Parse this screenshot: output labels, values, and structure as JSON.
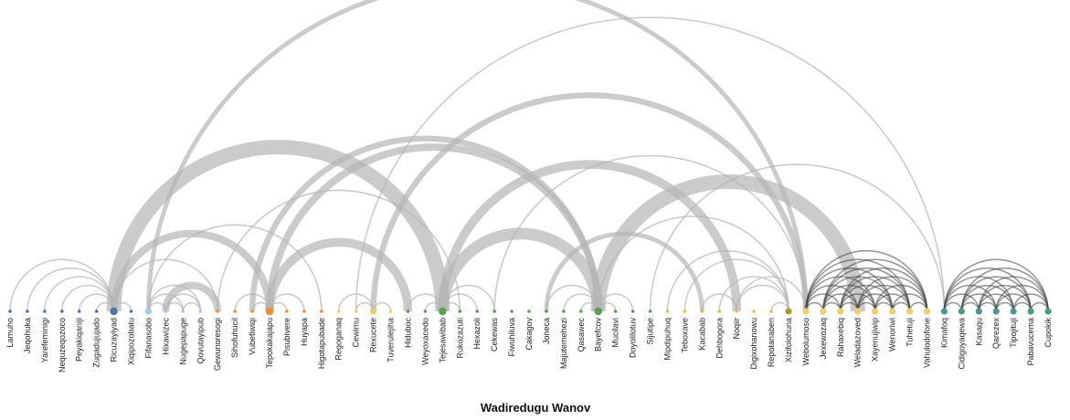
{
  "chart_data": {
    "type": "arc-diagram",
    "title": "Wadiredugu Wanov",
    "group_colors": [
      "#4e79a7",
      "#a0cbe8",
      "#f28e2b",
      "#f1ce63",
      "#59a14f",
      "#e8c02f",
      "#499894",
      "#b6992d"
    ],
    "nodes": [
      {
        "name": "Lamuho",
        "group": 0,
        "size": 1
      },
      {
        "name": "Jeqohuka",
        "group": 0,
        "size": 1
      },
      {
        "name": "Yarefeminigi",
        "group": 0,
        "size": 1
      },
      {
        "name": "Nequzeqozoco",
        "group": 0,
        "size": 1
      },
      {
        "name": "Peyakiqaniji",
        "group": 0,
        "size": 1
      },
      {
        "name": "Zugadujujado",
        "group": 0,
        "size": 1
      },
      {
        "name": "Ricuzayiyad",
        "group": 0,
        "size": 3
      },
      {
        "name": "Xiqipozobatu",
        "group": 0,
        "size": 1
      },
      {
        "name": "Fifanasobo",
        "group": 1,
        "size": 2
      },
      {
        "name": "Hixawizec",
        "group": 1,
        "size": 1
      },
      {
        "name": "Nugepapuge",
        "group": 1,
        "size": 1
      },
      {
        "name": "Qovutayipub",
        "group": 1,
        "size": 1
      },
      {
        "name": "Gewunoresogi",
        "group": 2,
        "size": 1
      },
      {
        "name": "Sihofuhucil",
        "group": 2,
        "size": 1
      },
      {
        "name": "Vubefiwiqi",
        "group": 2,
        "size": 1
      },
      {
        "name": "Tepokakajapu",
        "group": 2,
        "size": 3
      },
      {
        "name": "Pisubivere",
        "group": 2,
        "size": 1
      },
      {
        "name": "Huyapa",
        "group": 2,
        "size": 1
      },
      {
        "name": "Higotapubade",
        "group": 2,
        "size": 1
      },
      {
        "name": "Regoganaq",
        "group": 3,
        "size": 1
      },
      {
        "name": "Cewimu",
        "group": 3,
        "size": 1
      },
      {
        "name": "Rexucete",
        "group": 3,
        "size": 2
      },
      {
        "name": "Tuverulejiha",
        "group": 3,
        "size": 1
      },
      {
        "name": "Hiduboc",
        "group": 4,
        "size": 1
      },
      {
        "name": "Weyoxacedo",
        "group": 4,
        "size": 1
      },
      {
        "name": "Tejesawibab",
        "group": 4,
        "size": 3
      },
      {
        "name": "Rukozazuti",
        "group": 4,
        "size": 1
      },
      {
        "name": "Hexazoli",
        "group": 4,
        "size": 1
      },
      {
        "name": "Cekewas",
        "group": 4,
        "size": 1
      },
      {
        "name": "Fiwuhiluva",
        "group": 4,
        "size": 1
      },
      {
        "name": "Cakagov",
        "group": 4,
        "size": 1
      },
      {
        "name": "Joneca",
        "group": 4,
        "size": 1
      },
      {
        "name": "Majutemehezi",
        "group": 4,
        "size": 1
      },
      {
        "name": "Qasawec",
        "group": 4,
        "size": 1
      },
      {
        "name": "Bayefcov",
        "group": 4,
        "size": 3
      },
      {
        "name": "Mucilavi",
        "group": 4,
        "size": 1
      },
      {
        "name": "Doyolilotuv",
        "group": 4,
        "size": 1
      },
      {
        "name": "Sijutipe",
        "group": 4,
        "size": 1
      },
      {
        "name": "Mipdipuhuq",
        "group": 5,
        "size": 1
      },
      {
        "name": "Teboxave",
        "group": 5,
        "size": 1
      },
      {
        "name": "Kacabab",
        "group": 5,
        "size": 1
      },
      {
        "name": "Dehbogora",
        "group": 5,
        "size": 1
      },
      {
        "name": "Noqiir",
        "group": 5,
        "size": 1
      },
      {
        "name": "Digixohanowu",
        "group": 5,
        "size": 1
      },
      {
        "name": "Repotanaben",
        "group": 5,
        "size": 1
      },
      {
        "name": "Xizifolohuna",
        "group": 7,
        "size": 2
      },
      {
        "name": "Webolumoso",
        "group": 3,
        "size": 2
      },
      {
        "name": "Jexewozaq",
        "group": 3,
        "size": 2
      },
      {
        "name": "Rahaxebiq",
        "group": 3,
        "size": 2
      },
      {
        "name": "Weladazoved",
        "group": 3,
        "size": 2
      },
      {
        "name": "Xayenujiwip",
        "group": 3,
        "size": 2
      },
      {
        "name": "Wenoriwi",
        "group": 3,
        "size": 2
      },
      {
        "name": "Tuhetuji",
        "group": 3,
        "size": 2
      },
      {
        "name": "Vahulodofone",
        "group": 3,
        "size": 2
      },
      {
        "name": "Kimafoq",
        "group": 6,
        "size": 2
      },
      {
        "name": "Cidigoyaqewa",
        "group": 6,
        "size": 2
      },
      {
        "name": "Kasaqu",
        "group": 6,
        "size": 2
      },
      {
        "name": "Qarezex",
        "group": 6,
        "size": 2
      },
      {
        "name": "Tipojituji",
        "group": 6,
        "size": 2
      },
      {
        "name": "Pabavucema",
        "group": 6,
        "size": 2
      },
      {
        "name": "Cupokik",
        "group": 6,
        "size": 2
      }
    ],
    "links": [
      {
        "source": 0,
        "target": 6,
        "value": 1,
        "dark": false
      },
      {
        "source": 1,
        "target": 6,
        "value": 1,
        "dark": false
      },
      {
        "source": 2,
        "target": 6,
        "value": 1,
        "dark": false
      },
      {
        "source": 3,
        "target": 6,
        "value": 1,
        "dark": false
      },
      {
        "source": 4,
        "target": 6,
        "value": 1,
        "dark": false
      },
      {
        "source": 5,
        "target": 6,
        "value": 1,
        "dark": false
      },
      {
        "source": 6,
        "target": 7,
        "value": 1,
        "dark": false
      },
      {
        "source": 6,
        "target": 25,
        "value": 10,
        "dark": false
      },
      {
        "source": 6,
        "target": 15,
        "value": 5,
        "dark": false
      },
      {
        "source": 6,
        "target": 12,
        "value": 1,
        "dark": false
      },
      {
        "source": 8,
        "target": 46,
        "value": 3,
        "dark": false
      },
      {
        "source": 8,
        "target": 9,
        "value": 1,
        "dark": false
      },
      {
        "source": 8,
        "target": 10,
        "value": 1,
        "dark": false
      },
      {
        "source": 8,
        "target": 11,
        "value": 1,
        "dark": false
      },
      {
        "source": 9,
        "target": 10,
        "value": 1,
        "dark": false
      },
      {
        "source": 9,
        "target": 11,
        "value": 1,
        "dark": false
      },
      {
        "source": 10,
        "target": 11,
        "value": 1,
        "dark": false
      },
      {
        "source": 9,
        "target": 12,
        "value": 5,
        "dark": false
      },
      {
        "source": 8,
        "target": 18,
        "value": 1,
        "dark": false
      },
      {
        "source": 12,
        "target": 26,
        "value": 1,
        "dark": false
      },
      {
        "source": 13,
        "target": 15,
        "value": 1,
        "dark": false
      },
      {
        "source": 14,
        "target": 15,
        "value": 1,
        "dark": false
      },
      {
        "source": 15,
        "target": 16,
        "value": 1,
        "dark": false
      },
      {
        "source": 15,
        "target": 17,
        "value": 1,
        "dark": false
      },
      {
        "source": 14,
        "target": 34,
        "value": 4,
        "dark": false
      },
      {
        "source": 15,
        "target": 34,
        "value": 5,
        "dark": false
      },
      {
        "source": 15,
        "target": 23,
        "value": 6,
        "dark": false
      },
      {
        "source": 20,
        "target": 21,
        "value": 1,
        "dark": false
      },
      {
        "source": 19,
        "target": 21,
        "value": 1,
        "dark": false
      },
      {
        "source": 21,
        "target": 22,
        "value": 1,
        "dark": false
      },
      {
        "source": 20,
        "target": 54,
        "value": 1,
        "dark": false
      },
      {
        "source": 21,
        "target": 46,
        "value": 4,
        "dark": false
      },
      {
        "source": 23,
        "target": 25,
        "value": 1,
        "dark": false
      },
      {
        "source": 24,
        "target": 25,
        "value": 1,
        "dark": false
      },
      {
        "source": 25,
        "target": 26,
        "value": 1,
        "dark": false
      },
      {
        "source": 25,
        "target": 27,
        "value": 1,
        "dark": false
      },
      {
        "source": 25,
        "target": 28,
        "value": 1,
        "dark": false
      },
      {
        "source": 25,
        "target": 34,
        "value": 8,
        "dark": false
      },
      {
        "source": 25,
        "target": 42,
        "value": 6,
        "dark": false
      },
      {
        "source": 28,
        "target": 46,
        "value": 1,
        "dark": false
      },
      {
        "source": 31,
        "target": 34,
        "value": 1,
        "dark": false
      },
      {
        "source": 32,
        "target": 34,
        "value": 1,
        "dark": false
      },
      {
        "source": 33,
        "target": 34,
        "value": 1,
        "dark": false
      },
      {
        "source": 34,
        "target": 35,
        "value": 1,
        "dark": false
      },
      {
        "source": 34,
        "target": 36,
        "value": 1,
        "dark": false
      },
      {
        "source": 31,
        "target": 40,
        "value": 3,
        "dark": false
      },
      {
        "source": 34,
        "target": 49,
        "value": 10,
        "dark": false
      },
      {
        "source": 34,
        "target": 45,
        "value": 1,
        "dark": false
      },
      {
        "source": 37,
        "target": 54,
        "value": 1,
        "dark": false
      },
      {
        "source": 38,
        "target": 45,
        "value": 1,
        "dark": false
      },
      {
        "source": 39,
        "target": 45,
        "value": 1,
        "dark": false
      },
      {
        "source": 40,
        "target": 42,
        "value": 1,
        "dark": false
      },
      {
        "source": 41,
        "target": 45,
        "value": 1,
        "dark": false
      },
      {
        "source": 42,
        "target": 45,
        "value": 1,
        "dark": false
      },
      {
        "source": 44,
        "target": 45,
        "value": 1,
        "dark": false
      },
      {
        "source": 42,
        "target": 46,
        "value": 1,
        "dark": false
      },
      {
        "source": 46,
        "target": 47,
        "value": 1,
        "dark": true
      },
      {
        "source": 46,
        "target": 48,
        "value": 1,
        "dark": true
      },
      {
        "source": 46,
        "target": 49,
        "value": 1,
        "dark": true
      },
      {
        "source": 46,
        "target": 50,
        "value": 1,
        "dark": true
      },
      {
        "source": 46,
        "target": 51,
        "value": 1,
        "dark": true
      },
      {
        "source": 46,
        "target": 52,
        "value": 1,
        "dark": true
      },
      {
        "source": 46,
        "target": 53,
        "value": 1,
        "dark": true
      },
      {
        "source": 47,
        "target": 48,
        "value": 1,
        "dark": true
      },
      {
        "source": 47,
        "target": 49,
        "value": 1,
        "dark": true
      },
      {
        "source": 47,
        "target": 50,
        "value": 1,
        "dark": true
      },
      {
        "source": 47,
        "target": 51,
        "value": 1,
        "dark": true
      },
      {
        "source": 47,
        "target": 52,
        "value": 1,
        "dark": true
      },
      {
        "source": 47,
        "target": 53,
        "value": 1,
        "dark": true
      },
      {
        "source": 48,
        "target": 49,
        "value": 1,
        "dark": true
      },
      {
        "source": 48,
        "target": 50,
        "value": 1,
        "dark": true
      },
      {
        "source": 48,
        "target": 51,
        "value": 1,
        "dark": true
      },
      {
        "source": 48,
        "target": 52,
        "value": 1,
        "dark": true
      },
      {
        "source": 48,
        "target": 53,
        "value": 1,
        "dark": true
      },
      {
        "source": 49,
        "target": 50,
        "value": 1,
        "dark": true
      },
      {
        "source": 49,
        "target": 51,
        "value": 1,
        "dark": true
      },
      {
        "source": 49,
        "target": 52,
        "value": 1,
        "dark": true
      },
      {
        "source": 49,
        "target": 53,
        "value": 1,
        "dark": true
      },
      {
        "source": 50,
        "target": 51,
        "value": 1,
        "dark": true
      },
      {
        "source": 50,
        "target": 52,
        "value": 1,
        "dark": true
      },
      {
        "source": 50,
        "target": 53,
        "value": 1,
        "dark": true
      },
      {
        "source": 51,
        "target": 52,
        "value": 1,
        "dark": true
      },
      {
        "source": 51,
        "target": 53,
        "value": 1,
        "dark": true
      },
      {
        "source": 52,
        "target": 53,
        "value": 1,
        "dark": true
      },
      {
        "source": 54,
        "target": 55,
        "value": 1,
        "dark": true
      },
      {
        "source": 54,
        "target": 56,
        "value": 1,
        "dark": true
      },
      {
        "source": 54,
        "target": 57,
        "value": 1,
        "dark": true
      },
      {
        "source": 54,
        "target": 58,
        "value": 1,
        "dark": true
      },
      {
        "source": 54,
        "target": 59,
        "value": 1,
        "dark": true
      },
      {
        "source": 54,
        "target": 60,
        "value": 1,
        "dark": true
      },
      {
        "source": 55,
        "target": 56,
        "value": 1,
        "dark": true
      },
      {
        "source": 55,
        "target": 57,
        "value": 1,
        "dark": true
      },
      {
        "source": 55,
        "target": 58,
        "value": 1,
        "dark": true
      },
      {
        "source": 55,
        "target": 59,
        "value": 1,
        "dark": true
      },
      {
        "source": 55,
        "target": 60,
        "value": 1,
        "dark": true
      },
      {
        "source": 56,
        "target": 57,
        "value": 1,
        "dark": true
      },
      {
        "source": 56,
        "target": 58,
        "value": 1,
        "dark": true
      },
      {
        "source": 56,
        "target": 59,
        "value": 1,
        "dark": true
      },
      {
        "source": 56,
        "target": 60,
        "value": 1,
        "dark": true
      },
      {
        "source": 57,
        "target": 58,
        "value": 1,
        "dark": true
      },
      {
        "source": 57,
        "target": 59,
        "value": 1,
        "dark": true
      },
      {
        "source": 57,
        "target": 60,
        "value": 1,
        "dark": true
      },
      {
        "source": 58,
        "target": 59,
        "value": 1,
        "dark": true
      },
      {
        "source": 58,
        "target": 60,
        "value": 1,
        "dark": true
      },
      {
        "source": 59,
        "target": 60,
        "value": 1,
        "dark": true
      }
    ]
  }
}
